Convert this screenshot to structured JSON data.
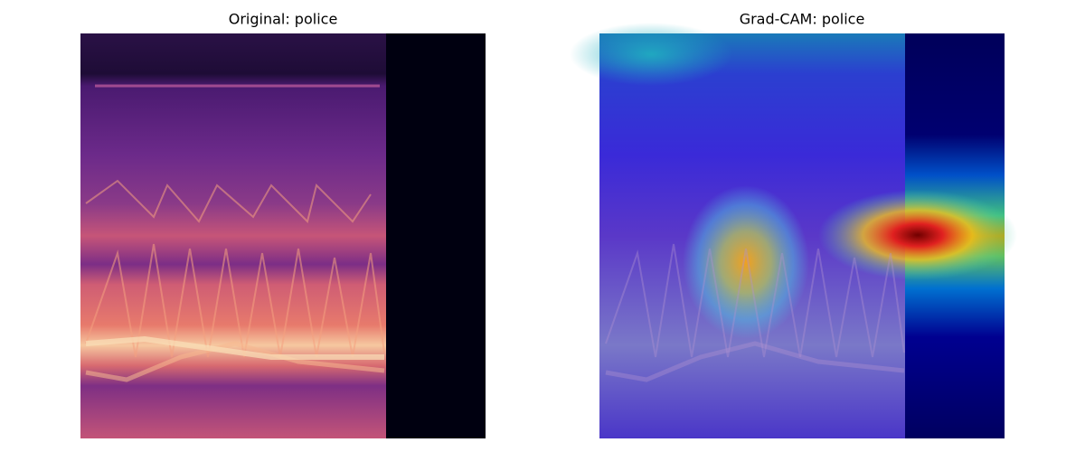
{
  "panels": [
    {
      "title": "Original: police"
    },
    {
      "title": "Grad-CAM: police"
    }
  ]
}
